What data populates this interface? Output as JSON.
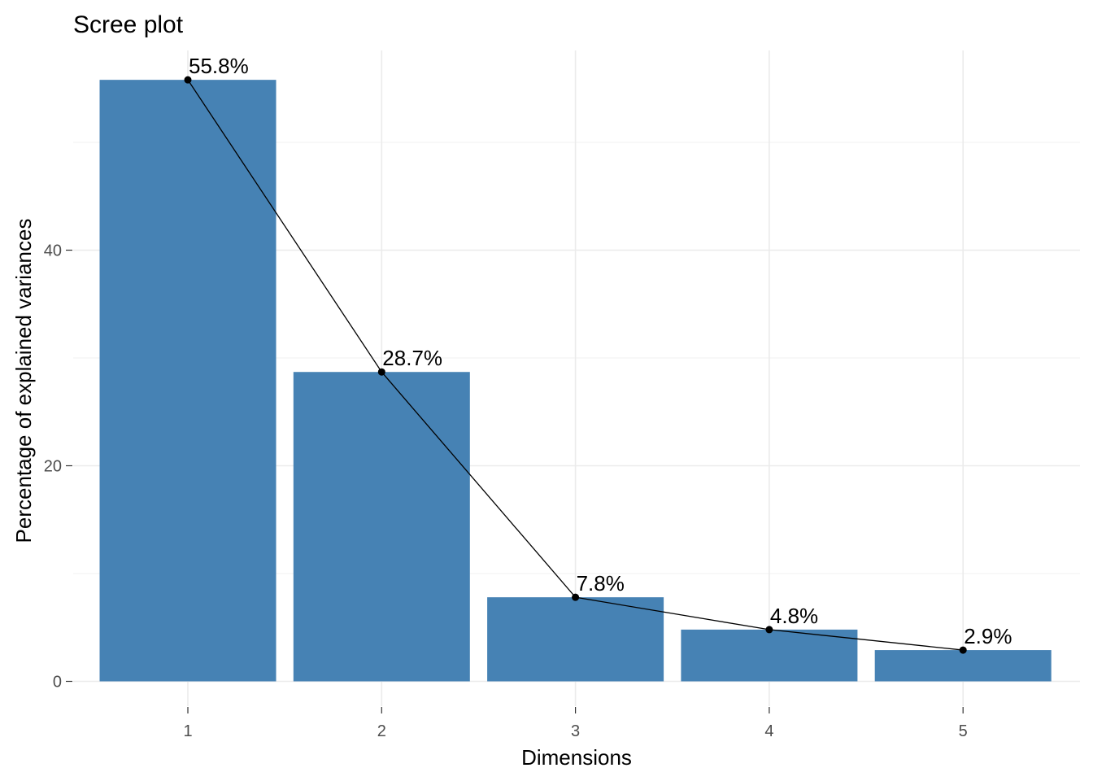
{
  "chart_data": {
    "type": "bar",
    "title": "Scree plot",
    "xlabel": "Dimensions",
    "ylabel": "Percentage of explained variances",
    "categories": [
      "1",
      "2",
      "3",
      "4",
      "5"
    ],
    "values": [
      55.8,
      28.7,
      7.8,
      4.8,
      2.9
    ],
    "data_labels": [
      "55.8%",
      "28.7%",
      "7.8%",
      "4.8%",
      "2.9%"
    ],
    "y_ticks": [
      0,
      20,
      40
    ],
    "y_minor_gridlines": [
      10,
      30,
      50
    ],
    "ylim": [
      0,
      58.6
    ],
    "grid": true,
    "legend": "none",
    "overlay_line": true,
    "colors": {
      "bar": "#4682B4",
      "line": "#000000",
      "point": "#000000"
    }
  }
}
